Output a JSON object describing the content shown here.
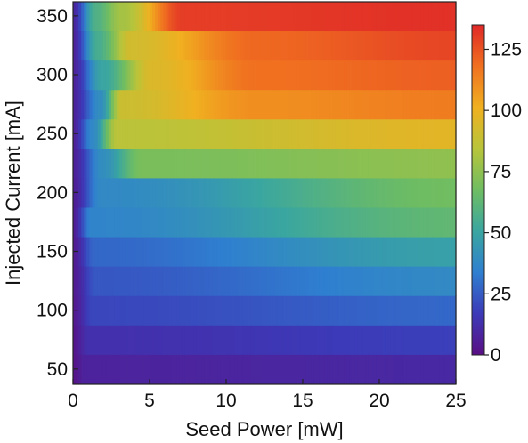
{
  "chart_data": {
    "type": "heatmap",
    "title": "",
    "xlabel": "Seed Power [mW]",
    "ylabel": "Injected Current [mA]",
    "xlim": [
      0,
      25
    ],
    "ylim": [
      37,
      362
    ],
    "x_ticks": [
      0,
      5,
      10,
      15,
      20,
      25
    ],
    "y_ticks": [
      50,
      100,
      150,
      200,
      250,
      300,
      350
    ],
    "colorbar": {
      "min": 0,
      "max": 135,
      "ticks": [
        0,
        25,
        50,
        75,
        100,
        125
      ],
      "colormap": [
        "#5a0f84",
        "#3c3ab8",
        "#2f7fd0",
        "#3aa6a0",
        "#6fbd62",
        "#b8c43a",
        "#f0b020",
        "#f07020",
        "#e02828"
      ]
    },
    "rows": [
      {
        "current": 50,
        "threshold_power": 0.8,
        "levels": [
          {
            "power": 0,
            "value": 2
          },
          {
            "power": 0.8,
            "value": 8
          },
          {
            "power": 25,
            "value": 10
          }
        ]
      },
      {
        "current": 75,
        "threshold_power": 1.0,
        "levels": [
          {
            "power": 0,
            "value": 3
          },
          {
            "power": 1.0,
            "value": 13
          },
          {
            "power": 25,
            "value": 18
          }
        ]
      },
      {
        "current": 100,
        "threshold_power": 1.3,
        "levels": [
          {
            "power": 0,
            "value": 4
          },
          {
            "power": 1.3,
            "value": 20
          },
          {
            "power": 25,
            "value": 28
          }
        ]
      },
      {
        "current": 125,
        "threshold_power": 1.5,
        "levels": [
          {
            "power": 0,
            "value": 5
          },
          {
            "power": 1.5,
            "value": 24
          },
          {
            "power": 25,
            "value": 38
          }
        ]
      },
      {
        "current": 150,
        "threshold_power": 1.4,
        "levels": [
          {
            "power": 0,
            "value": 5
          },
          {
            "power": 1.4,
            "value": 28
          },
          {
            "power": 25,
            "value": 48
          }
        ]
      },
      {
        "current": 175,
        "threshold_power": 1.2,
        "levels": [
          {
            "power": 0,
            "value": 6
          },
          {
            "power": 1.2,
            "value": 36
          },
          {
            "power": 25,
            "value": 63
          }
        ]
      },
      {
        "current": 200,
        "threshold_power": 1.8,
        "levels": [
          {
            "power": 0,
            "value": 6
          },
          {
            "power": 1.8,
            "value": 38
          },
          {
            "power": 25,
            "value": 68
          }
        ]
      },
      {
        "current": 225,
        "threshold_power": 1.9,
        "levels": [
          {
            "power": 0,
            "value": 7
          },
          {
            "power": 1.9,
            "value": 40
          },
          {
            "power": 4.5,
            "value": 70
          },
          {
            "power": 25,
            "value": 75
          }
        ]
      },
      {
        "current": 250,
        "threshold_power": 1.3,
        "levels": [
          {
            "power": 0,
            "value": 7
          },
          {
            "power": 1.3,
            "value": 38
          },
          {
            "power": 2.9,
            "value": 85
          },
          {
            "power": 25,
            "value": 97
          }
        ]
      },
      {
        "current": 275,
        "threshold_power": 1.8,
        "levels": [
          {
            "power": 0,
            "value": 8
          },
          {
            "power": 1.8,
            "value": 40
          },
          {
            "power": 3.2,
            "value": 90
          },
          {
            "power": 12,
            "value": 110
          },
          {
            "power": 25,
            "value": 115
          }
        ]
      },
      {
        "current": 300,
        "threshold_power": 1.9,
        "levels": [
          {
            "power": 0,
            "value": 8
          },
          {
            "power": 1.9,
            "value": 50
          },
          {
            "power": 5.2,
            "value": 95
          },
          {
            "power": 12,
            "value": 118
          },
          {
            "power": 25,
            "value": 122
          }
        ]
      },
      {
        "current": 325,
        "threshold_power": 1.6,
        "levels": [
          {
            "power": 0,
            "value": 8
          },
          {
            "power": 1.6,
            "value": 55
          },
          {
            "power": 3.8,
            "value": 92
          },
          {
            "power": 12,
            "value": 120
          },
          {
            "power": 25,
            "value": 128
          }
        ]
      },
      {
        "current": 350,
        "threshold_power": 1.5,
        "levels": [
          {
            "power": 0,
            "value": 9
          },
          {
            "power": 1.5,
            "value": 58
          },
          {
            "power": 3.2,
            "value": 80
          },
          {
            "power": 7.2,
            "value": 130
          },
          {
            "power": 25,
            "value": 133
          }
        ]
      }
    ]
  }
}
